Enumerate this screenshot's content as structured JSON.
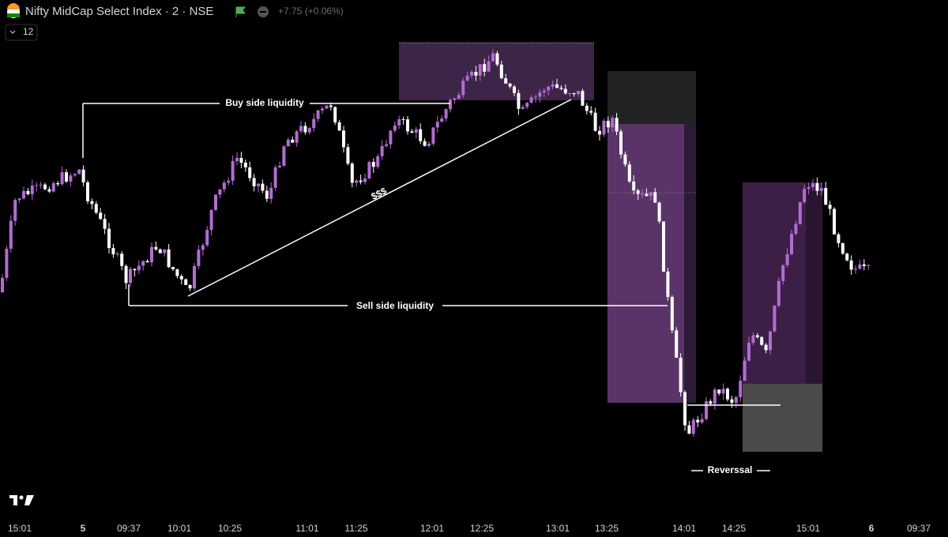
{
  "header": {
    "title": "Nifty MidCap Select Index · 2 · NSE",
    "change": "+7.75 (+0.06%)",
    "interval": "12"
  },
  "annotations": [
    "Buy side liquidity",
    "$$$",
    "Sell side liquidity",
    "Reverssal"
  ],
  "time_axis": [
    "15:01",
    "5",
    "09:37",
    "10:01",
    "10:25",
    "11:01",
    "11:25",
    "12:01",
    "12:25",
    "13:01",
    "13:25",
    "14:01",
    "14:25",
    "15:01",
    "6",
    "09:37"
  ]
}
